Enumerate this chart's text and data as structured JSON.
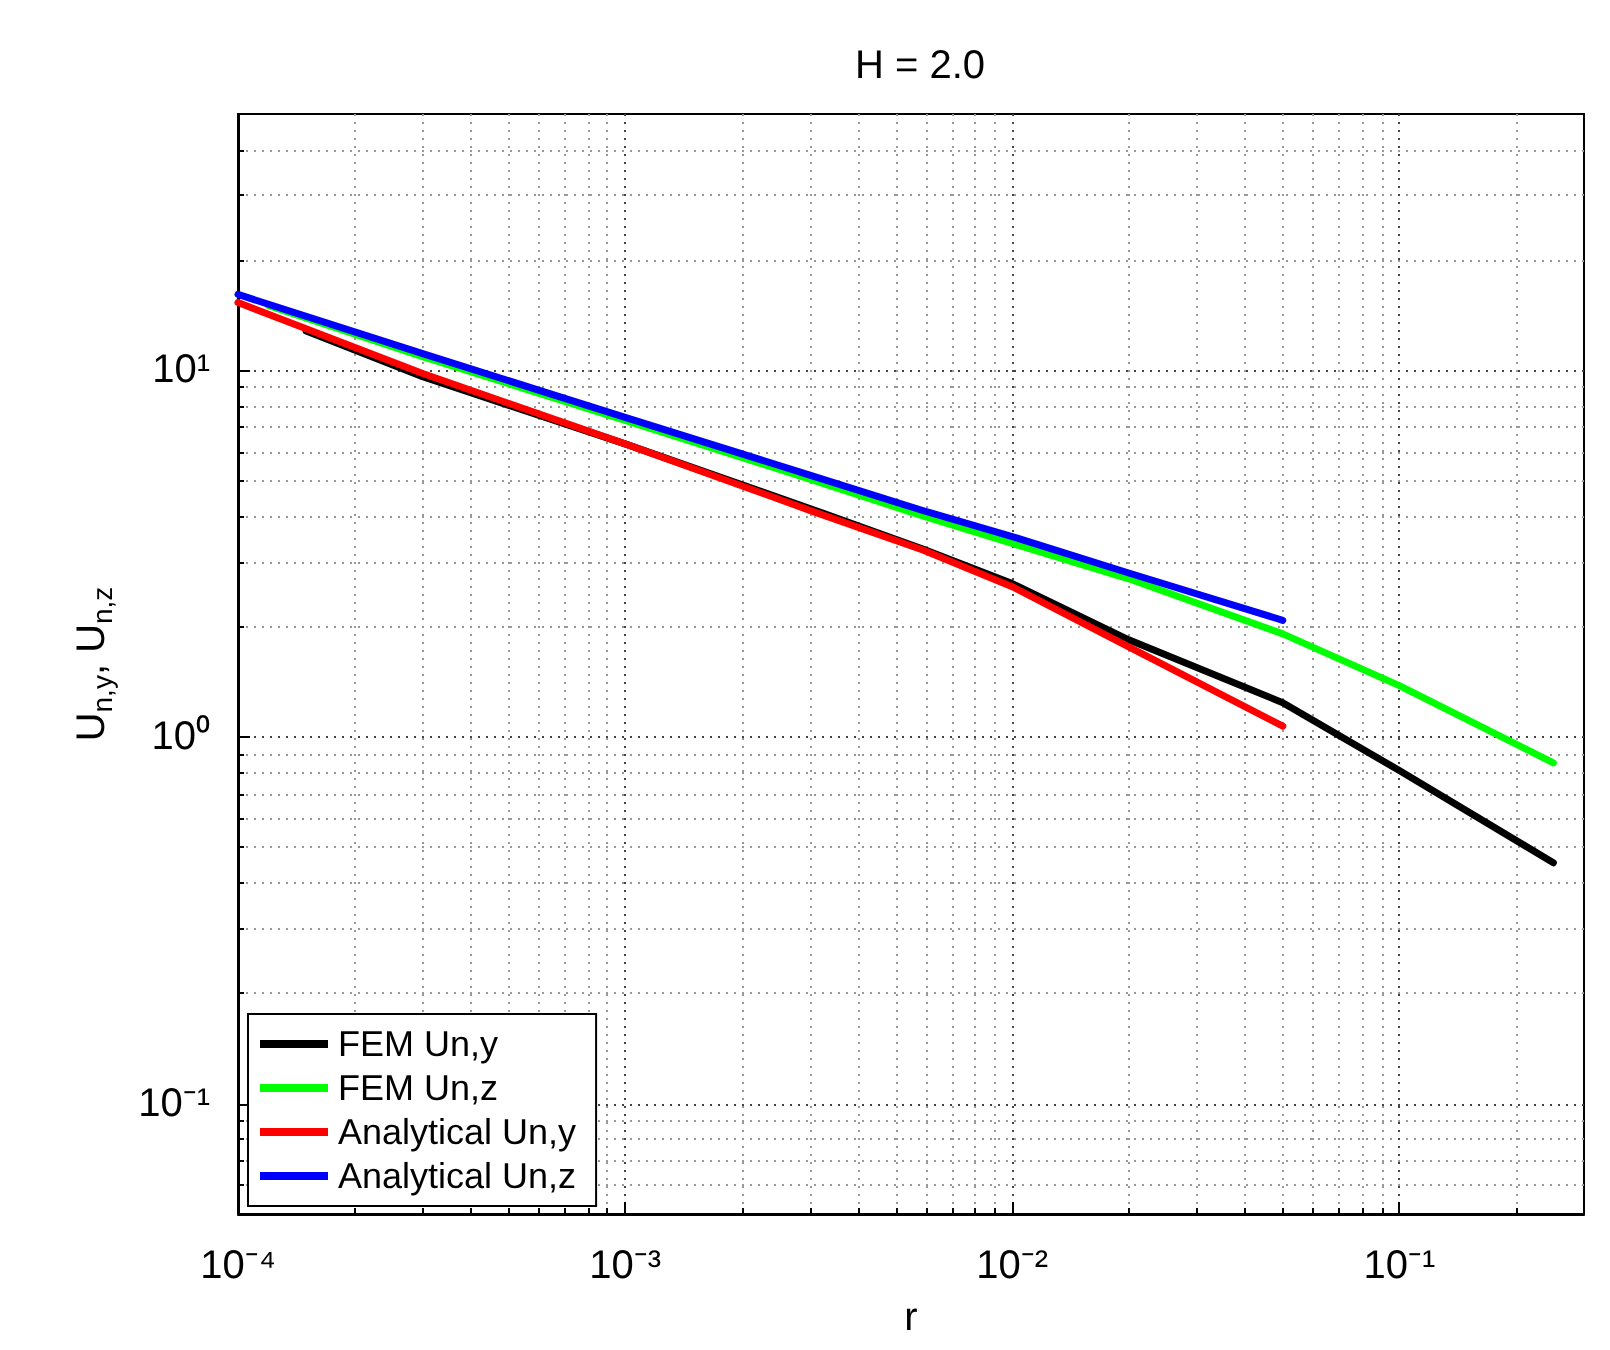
{
  "chart_data": {
    "type": "line",
    "title": "H = 2.0",
    "xlabel": "r",
    "ylabel": "U$_{n,y}$, U$_{n,z}$",
    "log": "xy",
    "grid": true,
    "legend": "bottom left",
    "line_style": "solid",
    "marker": "none",
    "xlim": [
      0.0001,
      0.3
    ],
    "ylim": [
      0.05,
      50
    ],
    "xticks": [
      {
        "value": 0.0001,
        "label": "10⁻⁴"
      },
      {
        "value": 0.001,
        "label": "10⁻³"
      },
      {
        "value": 0.01,
        "label": "10⁻²"
      },
      {
        "value": 0.1,
        "label": "10⁻¹"
      }
    ],
    "yticks": [
      {
        "value": 0.1,
        "label": "10⁻¹"
      },
      {
        "value": 1,
        "label": "10⁰"
      },
      {
        "value": 10,
        "label": "10¹"
      }
    ],
    "series": [
      {
        "name": "FEM Un,y",
        "color": "#000000",
        "x": [
          0.00015,
          0.0003,
          0.001,
          0.003,
          0.0059,
          0.01,
          0.02,
          0.05,
          0.1,
          0.25
        ],
        "values": [
          12.8,
          9.6,
          6.3,
          4.2,
          3.25,
          2.62,
          1.84,
          1.24,
          0.81,
          0.454
        ]
      },
      {
        "name": "FEM Un,z",
        "color": "#00ff00",
        "x": [
          0.00012,
          0.0003,
          0.001,
          0.003,
          0.0059,
          0.01,
          0.02,
          0.05,
          0.1,
          0.25
        ],
        "values": [
          15.0,
          10.9,
          7.3,
          5.05,
          4.0,
          3.37,
          2.7,
          1.91,
          1.38,
          0.85
        ]
      },
      {
        "name": "Analytical Un,y",
        "color": "#ff0000",
        "x": [
          0.0001,
          0.0003,
          0.001,
          0.003,
          0.0059,
          0.01,
          0.02,
          0.05
        ],
        "values": [
          15.3,
          9.8,
          6.3,
          4.15,
          3.23,
          2.57,
          1.76,
          1.07
        ]
      },
      {
        "name": "Analytical Un,z",
        "color": "#0000ff",
        "x": [
          0.0001,
          0.0003,
          0.001,
          0.003,
          0.0059,
          0.01,
          0.02,
          0.05
        ],
        "values": [
          16.1,
          11.1,
          7.44,
          5.18,
          4.14,
          3.52,
          2.8,
          2.08
        ]
      }
    ]
  }
}
